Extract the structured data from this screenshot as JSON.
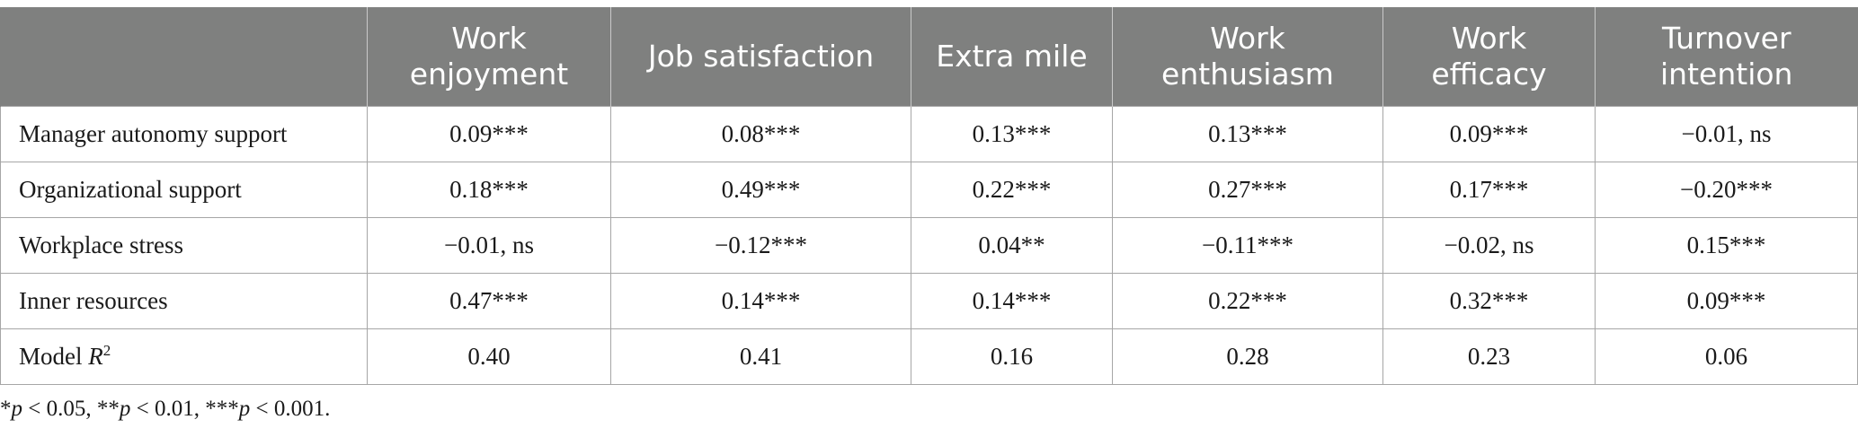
{
  "table": {
    "columns": [
      "",
      "Work enjoyment",
      "Job satisfaction",
      "Extra mile",
      "Work enthusiasm",
      "Work efficacy",
      "Turnover intention"
    ],
    "header_lines": [
      [
        "",
        ""
      ],
      [
        "Work",
        "enjoyment"
      ],
      [
        "Job satisfaction",
        ""
      ],
      [
        "Extra mile",
        ""
      ],
      [
        "Work",
        "enthusiasm"
      ],
      [
        "Work",
        "efficacy"
      ],
      [
        "Turnover",
        "intention"
      ]
    ],
    "rows": [
      {
        "label": "Manager autonomy support",
        "values": [
          "0.09***",
          "0.08***",
          "0.13***",
          "0.13***",
          "0.09***",
          "−0.01, ns"
        ]
      },
      {
        "label": "Organizational support",
        "values": [
          "0.18***",
          "0.49***",
          "0.22***",
          "0.27***",
          "0.17***",
          "−0.20***"
        ]
      },
      {
        "label": "Workplace stress",
        "values": [
          "−0.01, ns",
          "−0.12***",
          "0.04**",
          "−0.11***",
          "−0.02, ns",
          "0.15***"
        ]
      },
      {
        "label": "Inner resources",
        "values": [
          "0.47***",
          "0.14***",
          "0.14***",
          "0.22***",
          "0.32***",
          "0.09***"
        ]
      }
    ],
    "model_row": {
      "label_prefix": "Model",
      "label_var": "R",
      "label_sup": "2",
      "values": [
        "0.40",
        "0.41",
        "0.16",
        "0.28",
        "0.23",
        "0.06"
      ]
    }
  },
  "footnote": {
    "parts": [
      "*",
      "p",
      " < 0.05, **",
      "p",
      " < 0.01, ***",
      "p",
      " < 0.001."
    ]
  }
}
